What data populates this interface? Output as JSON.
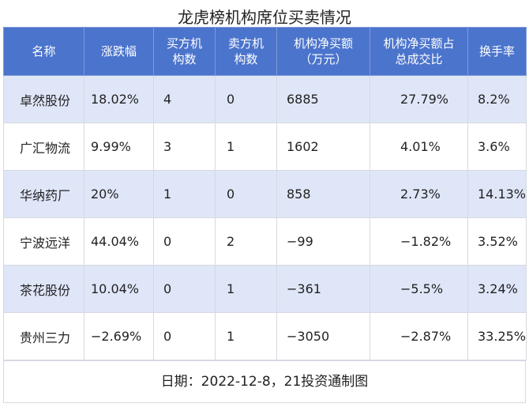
{
  "title": "龙虎榜机构席位买卖情况",
  "columns": [
    "名称",
    "涨跌幅",
    "买方机\n构数",
    "卖方机\n构数",
    "机构净买额\n（万元）",
    "机构净买额占\n总成交比",
    "换手率"
  ],
  "rows": [
    [
      "卓然股份",
      "18.02%",
      "4",
      "0",
      "6885",
      "27.79%",
      "8.2%"
    ],
    [
      "广汇物流",
      "9.99%",
      "3",
      "1",
      "1602",
      "4.01%",
      "3.6%"
    ],
    [
      "华纳药厂",
      "20%",
      "1",
      "0",
      "858",
      "2.73%",
      "14.13%"
    ],
    [
      "宁波远洋",
      "44.04%",
      "0",
      "2",
      "−99",
      "−1.82%",
      "3.52%"
    ],
    [
      "茶花股份",
      "10.04%",
      "0",
      "1",
      "−361",
      "−5.5%",
      "3.24%"
    ],
    [
      "贵州三力",
      "−2.69%",
      "0",
      "1",
      "−3050",
      "−2.87%",
      "33.25%"
    ]
  ],
  "footer": "日期：2022-12-8，21投资通制图"
}
